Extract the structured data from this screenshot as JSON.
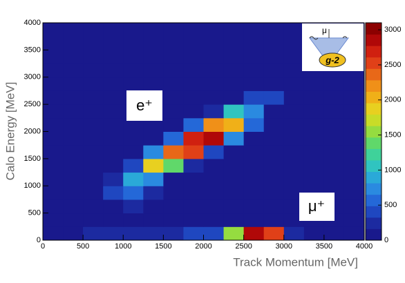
{
  "chart_data": {
    "type": "heatmap",
    "xlabel": "Track Momentum [MeV]",
    "ylabel": "Calo Energy [MeV]",
    "x_bins": [
      0,
      250,
      500,
      750,
      1000,
      1250,
      1500,
      1750,
      2000,
      2250,
      2500,
      2750,
      3000,
      3250,
      3500,
      3750,
      4000
    ],
    "y_bins": [
      0,
      250,
      500,
      750,
      1000,
      1250,
      1500,
      1750,
      2000,
      2250,
      2500,
      2750,
      3000,
      3250,
      3500,
      3750,
      4000
    ],
    "values": [
      [
        15,
        150,
        200,
        250,
        250,
        300,
        300,
        350,
        400,
        1500,
        2800,
        2600,
        300,
        50,
        30,
        30
      ],
      [
        15,
        40,
        40,
        60,
        100,
        100,
        80,
        60,
        60,
        150,
        150,
        100,
        40,
        30,
        30,
        30
      ],
      [
        15,
        30,
        40,
        80,
        200,
        150,
        100,
        60,
        40,
        40,
        40,
        40,
        30,
        30,
        30,
        30
      ],
      [
        15,
        30,
        30,
        400,
        600,
        200,
        60,
        40,
        30,
        30,
        30,
        30,
        30,
        30,
        30,
        30
      ],
      [
        15,
        30,
        30,
        200,
        900,
        800,
        150,
        50,
        30,
        30,
        30,
        30,
        30,
        30,
        30,
        30
      ],
      [
        15,
        30,
        30,
        50,
        400,
        1800,
        1400,
        200,
        50,
        30,
        30,
        30,
        30,
        30,
        30,
        30
      ],
      [
        15,
        30,
        30,
        30,
        80,
        700,
        2400,
        2600,
        400,
        60,
        30,
        30,
        30,
        30,
        30,
        30
      ],
      [
        15,
        30,
        30,
        30,
        30,
        100,
        600,
        2700,
        2900,
        800,
        80,
        30,
        30,
        30,
        30,
        30
      ],
      [
        15,
        30,
        30,
        30,
        30,
        30,
        80,
        500,
        2200,
        2100,
        500,
        60,
        30,
        30,
        30,
        30
      ],
      [
        15,
        30,
        30,
        30,
        30,
        30,
        30,
        60,
        300,
        1000,
        700,
        150,
        40,
        30,
        30,
        30
      ],
      [
        15,
        30,
        30,
        30,
        30,
        30,
        30,
        30,
        60,
        150,
        400,
        350,
        80,
        30,
        30,
        30
      ],
      [
        15,
        30,
        30,
        30,
        30,
        30,
        30,
        30,
        30,
        40,
        60,
        150,
        100,
        30,
        30,
        30
      ],
      [
        15,
        30,
        30,
        30,
        30,
        30,
        30,
        30,
        30,
        30,
        30,
        40,
        40,
        30,
        30,
        30
      ],
      [
        15,
        30,
        30,
        30,
        30,
        30,
        30,
        30,
        30,
        30,
        30,
        30,
        30,
        30,
        30,
        20
      ],
      [
        5,
        10,
        20,
        30,
        30,
        30,
        30,
        30,
        30,
        30,
        30,
        30,
        30,
        10,
        10,
        10
      ],
      [
        5,
        5,
        10,
        20,
        30,
        30,
        30,
        30,
        30,
        30,
        30,
        30,
        20,
        10,
        10,
        10
      ]
    ],
    "xlim": [
      0,
      4000
    ],
    "ylim": [
      0,
      4000
    ],
    "xticks": [
      0,
      500,
      1000,
      1500,
      2000,
      2500,
      3000,
      3500,
      4000
    ],
    "yticks": [
      0,
      500,
      1000,
      1500,
      2000,
      2500,
      3000,
      3500,
      4000
    ],
    "zlim": [
      0,
      3100
    ],
    "zticks": [
      0,
      500,
      1000,
      1500,
      2000,
      2500,
      3000
    ],
    "colormap": [
      "#19198c",
      "#1c2aa0",
      "#1f47c0",
      "#2468d8",
      "#2a8ae0",
      "#2aa9d8",
      "#30c4c0",
      "#3fd29a",
      "#60d86a",
      "#95dc40",
      "#c8dc28",
      "#e8d020",
      "#f0b018",
      "#f09018",
      "#e86818",
      "#e04018",
      "#d02010",
      "#b00808",
      "#8c0000"
    ],
    "annotations": [
      "e⁺",
      "μ⁺"
    ],
    "logo": {
      "symbol": "μ",
      "text": "g-2"
    }
  }
}
